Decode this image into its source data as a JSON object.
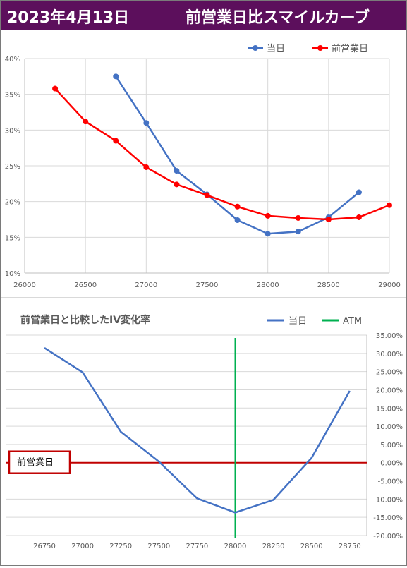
{
  "banner": {
    "date": "2023年4月13日",
    "title": "前営業日比スマイルカーブ"
  },
  "chart_data": [
    {
      "type": "line",
      "title": "",
      "xlabel": "",
      "ylabel": "",
      "xlim": [
        26000,
        29000
      ],
      "ylim": [
        0.1,
        0.4
      ],
      "x_ticks": [
        26000,
        26500,
        27000,
        27500,
        28000,
        28500,
        29000
      ],
      "x_tick_labels": [
        "26000",
        "26500",
        "27000",
        "27500",
        "28000",
        "28500",
        "29000"
      ],
      "y_ticks": [
        0.1,
        0.15,
        0.2,
        0.25,
        0.3,
        0.35,
        0.4
      ],
      "y_tick_labels": [
        "10%",
        "15%",
        "20%",
        "25%",
        "30%",
        "35%",
        "40%"
      ],
      "grid": true,
      "legend_position": "top-right",
      "series": [
        {
          "name": "当日",
          "color": "#4472c4",
          "marker": "circle",
          "x": [
            26750,
            27000,
            27250,
            27500,
            27750,
            28000,
            28250,
            28500,
            28750
          ],
          "y": [
            0.375,
            0.31,
            0.243,
            0.21,
            0.174,
            0.155,
            0.158,
            0.178,
            0.213
          ]
        },
        {
          "name": "前営業日",
          "color": "#ff0000",
          "marker": "circle",
          "x": [
            26250,
            26500,
            26750,
            27000,
            27250,
            27500,
            27750,
            28000,
            28250,
            28500,
            28750,
            29000
          ],
          "y": [
            0.358,
            0.312,
            0.285,
            0.248,
            0.224,
            0.209,
            0.193,
            0.18,
            0.177,
            0.175,
            0.178,
            0.195
          ]
        }
      ]
    },
    {
      "type": "line",
      "title": "前営業日と比較したIV変化率",
      "xlabel": "",
      "ylabel": "",
      "categories": [
        "26750",
        "27000",
        "27250",
        "27500",
        "27750",
        "28000",
        "28250",
        "28500",
        "28750"
      ],
      "ylim": [
        -0.2,
        0.35
      ],
      "y_ticks": [
        -0.2,
        -0.15,
        -0.1,
        -0.05,
        0.0,
        0.05,
        0.1,
        0.15,
        0.2,
        0.25,
        0.3,
        0.35
      ],
      "y_tick_labels": [
        "-20.00%",
        "-15.00%",
        "-10.00%",
        "-5.00%",
        "0.00%",
        "5.00%",
        "10.00%",
        "15.00%",
        "20.00%",
        "25.00%",
        "30.00%",
        "35.00%"
      ],
      "y_axis_side": "right",
      "grid": true,
      "legend_position": "top-right",
      "series": [
        {
          "name": "当日",
          "color": "#4472c4",
          "values": [
            0.315,
            0.248,
            0.085,
            0.003,
            -0.098,
            -0.137,
            -0.102,
            0.013,
            0.197
          ]
        }
      ],
      "atm": {
        "name": "ATM",
        "value": "28000",
        "color": "#00b050"
      },
      "reference_line": {
        "label": "前営業日",
        "value": 0.0,
        "color": "#c00000"
      }
    }
  ]
}
